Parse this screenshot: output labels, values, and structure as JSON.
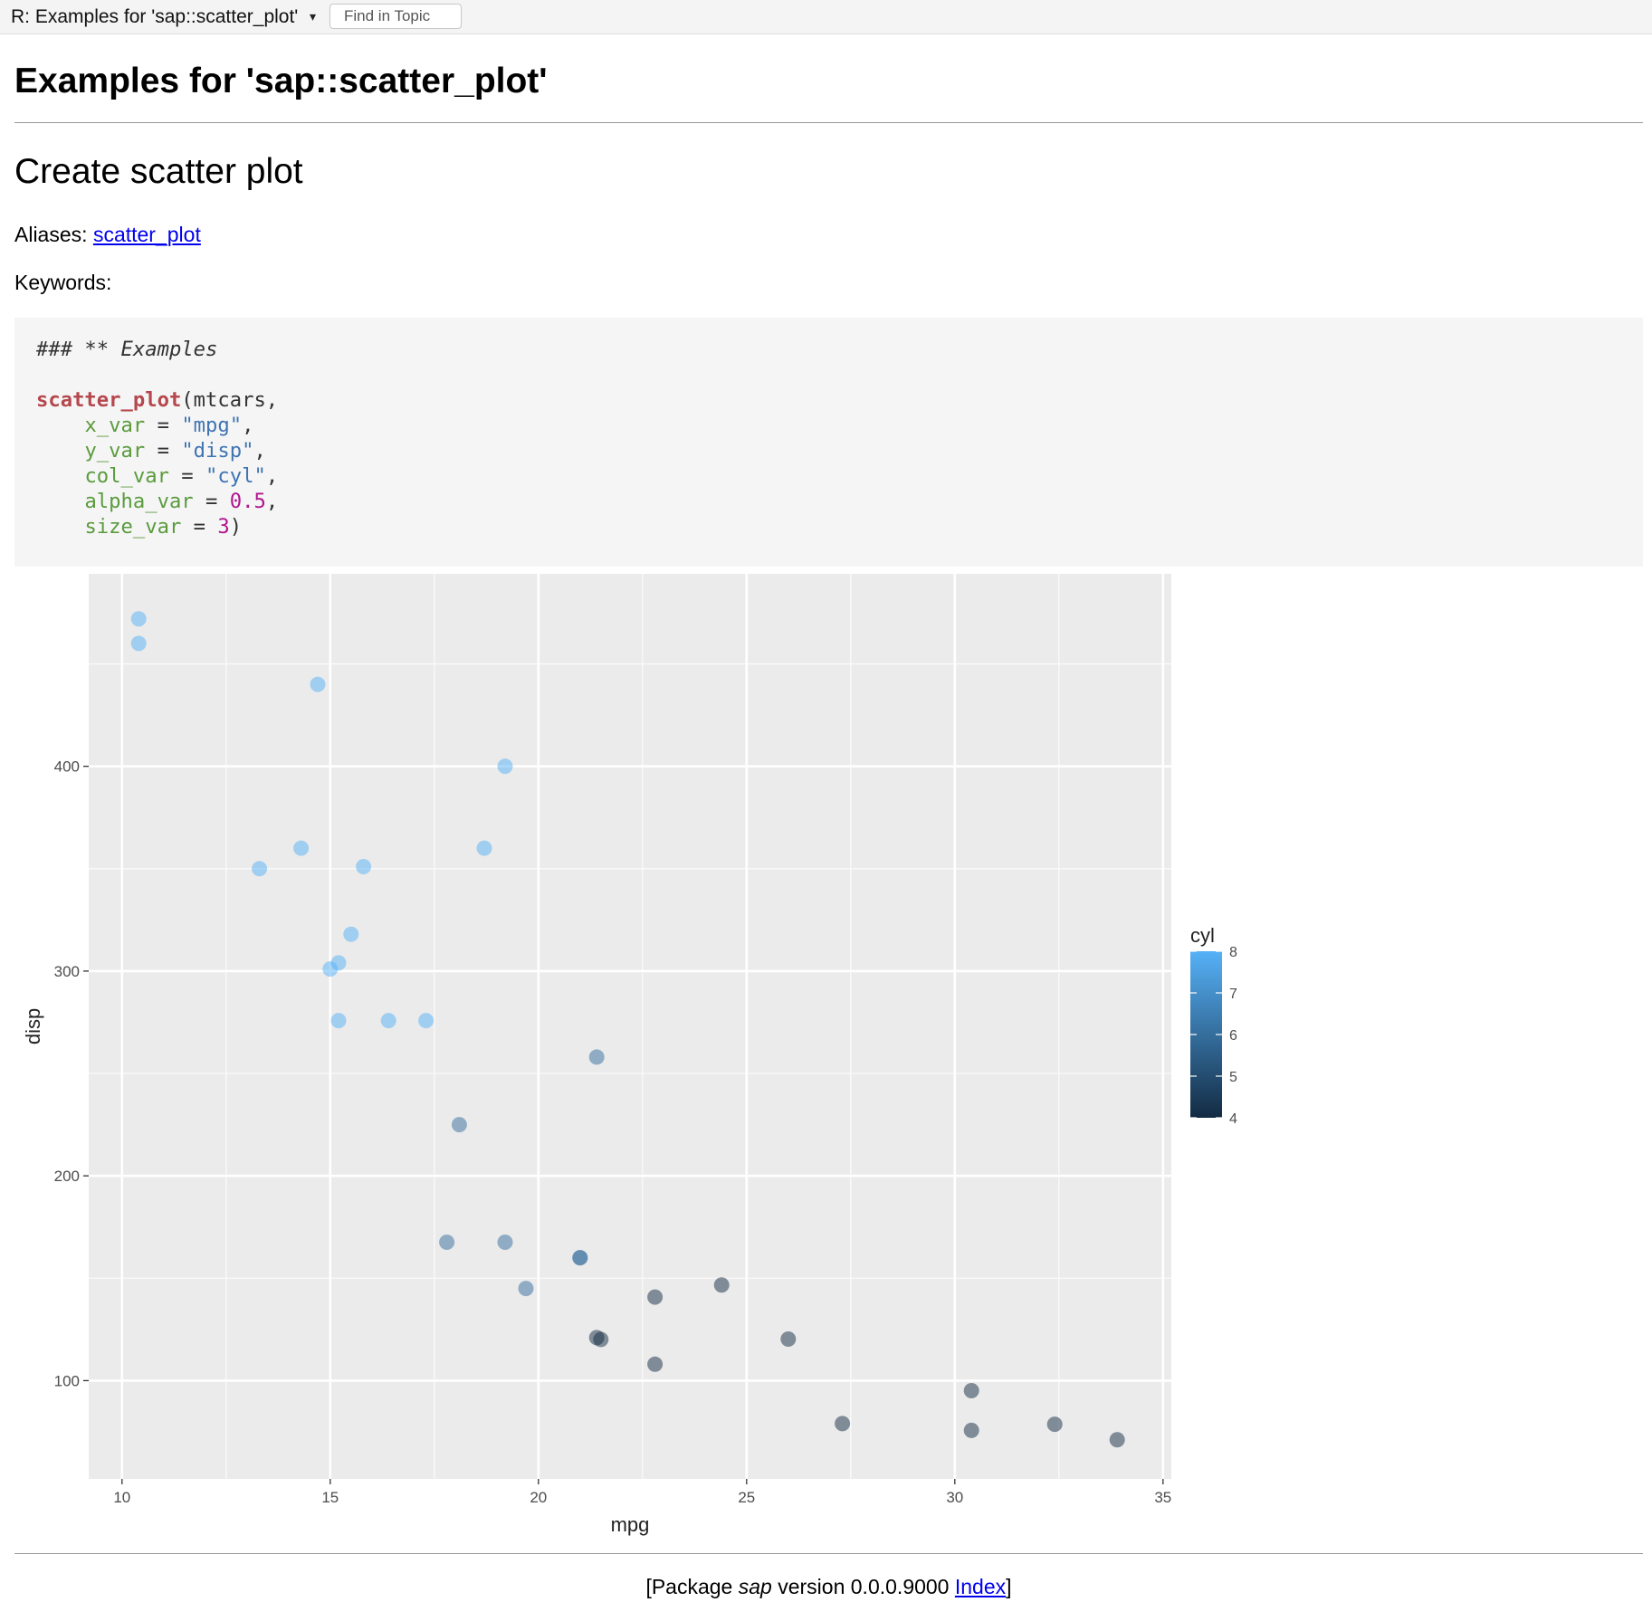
{
  "topbar": {
    "topic_title": "R: Examples for 'sap::scatter_plot'",
    "caret": "▾",
    "find_placeholder": "Find in Topic"
  },
  "page": {
    "title": "Examples for 'sap::scatter_plot'",
    "section_title": "Create scatter plot",
    "aliases_label": "Aliases:",
    "alias_link": "scatter_plot",
    "keywords_label": "Keywords:"
  },
  "code": {
    "comment": "### ** Examples",
    "fn": "scatter_plot",
    "first_arg": "(mtcars,",
    "indent": "    ",
    "args": [
      {
        "name": "x_var",
        "eq": " = ",
        "value": "\"mpg\"",
        "type": "str",
        "tail": ","
      },
      {
        "name": "y_var",
        "eq": " = ",
        "value": "\"disp\"",
        "type": "str",
        "tail": ","
      },
      {
        "name": "col_var",
        "eq": " = ",
        "value": "\"cyl\"",
        "type": "str",
        "tail": ","
      },
      {
        "name": "alpha_var",
        "eq": " = ",
        "value": "0.5",
        "type": "num",
        "tail": ","
      },
      {
        "name": "size_var",
        "eq": " = ",
        "value": "3",
        "type": "num",
        "tail": ")"
      }
    ]
  },
  "chart_data": {
    "type": "scatter",
    "title": "",
    "xlabel": "mpg",
    "ylabel": "disp",
    "xlim": [
      9.2,
      35.2
    ],
    "ylim": [
      52,
      494
    ],
    "xticks": [
      10,
      15,
      20,
      25,
      30,
      35
    ],
    "yticks": [
      100,
      200,
      300,
      400
    ],
    "grid": true,
    "panel_color": "#ebebeb",
    "legend": {
      "title": "cyl",
      "placement": "right",
      "ticks": [
        8,
        7,
        6,
        5,
        4
      ],
      "range": [
        4,
        8
      ],
      "color_low": "#132b43",
      "color_high": "#56b1f7"
    },
    "point_alpha": 0.5,
    "points": [
      {
        "x": 21.0,
        "y": 160,
        "c": 6
      },
      {
        "x": 21.0,
        "y": 160,
        "c": 6
      },
      {
        "x": 22.8,
        "y": 108,
        "c": 4
      },
      {
        "x": 21.4,
        "y": 258,
        "c": 6
      },
      {
        "x": 18.7,
        "y": 360,
        "c": 8
      },
      {
        "x": 18.1,
        "y": 225,
        "c": 6
      },
      {
        "x": 14.3,
        "y": 360,
        "c": 8
      },
      {
        "x": 24.4,
        "y": 146.7,
        "c": 4
      },
      {
        "x": 22.8,
        "y": 140.8,
        "c": 4
      },
      {
        "x": 19.2,
        "y": 167.6,
        "c": 6
      },
      {
        "x": 17.8,
        "y": 167.6,
        "c": 6
      },
      {
        "x": 16.4,
        "y": 275.8,
        "c": 8
      },
      {
        "x": 17.3,
        "y": 275.8,
        "c": 8
      },
      {
        "x": 15.2,
        "y": 275.8,
        "c": 8
      },
      {
        "x": 10.4,
        "y": 472,
        "c": 8
      },
      {
        "x": 10.4,
        "y": 460,
        "c": 8
      },
      {
        "x": 14.7,
        "y": 440,
        "c": 8
      },
      {
        "x": 32.4,
        "y": 78.7,
        "c": 4
      },
      {
        "x": 30.4,
        "y": 75.7,
        "c": 4
      },
      {
        "x": 33.9,
        "y": 71.1,
        "c": 4
      },
      {
        "x": 21.5,
        "y": 120.1,
        "c": 4
      },
      {
        "x": 15.5,
        "y": 318,
        "c": 8
      },
      {
        "x": 15.2,
        "y": 304,
        "c": 8
      },
      {
        "x": 13.3,
        "y": 350,
        "c": 8
      },
      {
        "x": 19.2,
        "y": 400,
        "c": 8
      },
      {
        "x": 27.3,
        "y": 79,
        "c": 4
      },
      {
        "x": 26.0,
        "y": 120.3,
        "c": 4
      },
      {
        "x": 30.4,
        "y": 95.1,
        "c": 4
      },
      {
        "x": 15.8,
        "y": 351,
        "c": 8
      },
      {
        "x": 19.7,
        "y": 145,
        "c": 6
      },
      {
        "x": 15.0,
        "y": 301,
        "c": 8
      },
      {
        "x": 21.4,
        "y": 121,
        "c": 4
      }
    ]
  },
  "footer": {
    "open": "[Package ",
    "package": "sap",
    "version_text": " version 0.0.0.9000 ",
    "index_link": "Index",
    "close": "]"
  }
}
